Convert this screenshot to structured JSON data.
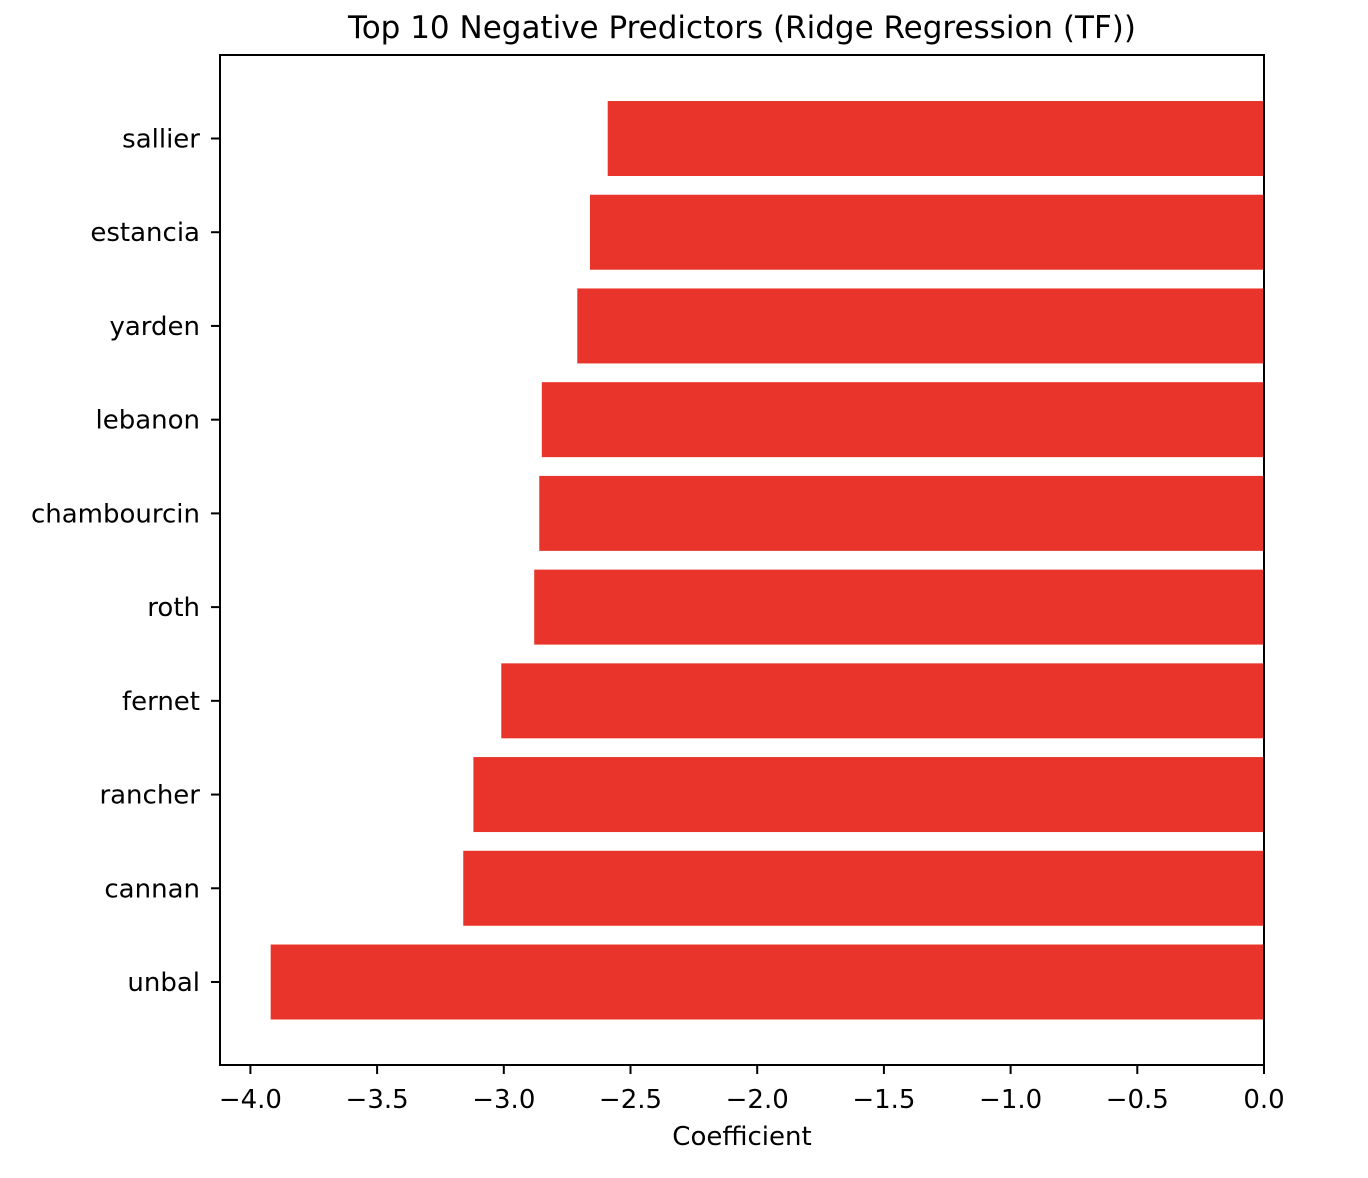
{
  "chart_data": {
    "type": "bar",
    "orientation": "horizontal",
    "title": "Top 10 Negative Predictors (Ridge Regression (TF))",
    "xlabel": "Coefficient",
    "ylabel": "",
    "xlim": [
      -4.12,
      0.0
    ],
    "grid": false,
    "bar_color": "#e8342a",
    "categories": [
      "sallier",
      "estancia",
      "yarden",
      "lebanon",
      "chambourcin",
      "roth",
      "fernet",
      "rancher",
      "cannan",
      "unbal"
    ],
    "values": [
      -2.59,
      -2.66,
      -2.71,
      -2.85,
      -2.86,
      -2.88,
      -3.01,
      -3.12,
      -3.16,
      -3.92
    ],
    "x_ticks": [
      -4.0,
      -3.5,
      -3.0,
      -2.5,
      -2.0,
      -1.5,
      -1.0,
      -0.5,
      0.0
    ],
    "x_tick_labels": [
      "−4.0",
      "−3.5",
      "−3.0",
      "−2.5",
      "−2.0",
      "−1.5",
      "−1.0",
      "−0.5",
      "0.0"
    ]
  }
}
